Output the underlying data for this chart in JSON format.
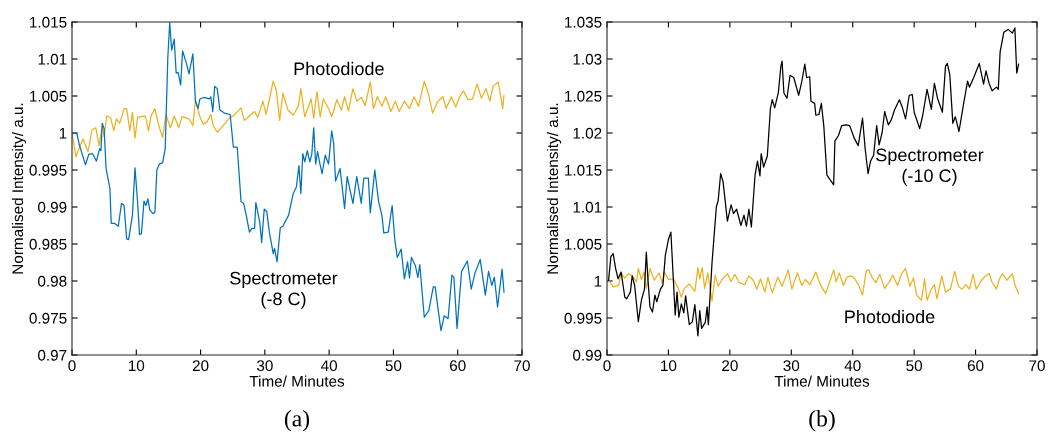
{
  "chart_data": [
    {
      "type": "line",
      "title": "(a)",
      "xlabel": "Time/ Minutes",
      "ylabel": "Normalised Intensity/ a.u.",
      "xlim": [
        0,
        70
      ],
      "xticks": [
        0,
        10,
        20,
        30,
        40,
        50,
        60,
        70
      ],
      "ylim": [
        0.97,
        1.015
      ],
      "yticks": [
        0.97,
        0.975,
        0.98,
        0.985,
        0.99,
        0.995,
        1,
        1.005,
        1.01,
        1.015
      ],
      "line_style": "solid",
      "annotations": [
        "Photodiode",
        "Spectrometer\n(-8 C)"
      ],
      "series": [
        {
          "color": "#edb120",
          "x": [
            0,
            0.6,
            1.7,
            2.5,
            3.1,
            3.7,
            4.2,
            4.7,
            5.0,
            5.4,
            6.0,
            6.5,
            6.9,
            7.4,
            8.1,
            8.5,
            9.0,
            9.4,
            9.8,
            10.2,
            10.8,
            11.4,
            11.9,
            12.3,
            12.9,
            13.5,
            14.1,
            14.6,
            15.3,
            15.9,
            16.6,
            17.1,
            18.2,
            18.8,
            19.2,
            19.9,
            20.4,
            21.0,
            21.6,
            22.0,
            22.6,
            23.7,
            24.5,
            25.2,
            26.3,
            26.8,
            27.6,
            28.4,
            28.9,
            29.7,
            30.2,
            31.3,
            31.8,
            32.3,
            32.8,
            33.6,
            34.4,
            35.2,
            35.6,
            36.2,
            37.2,
            37.6,
            38.1,
            38.6,
            39.1,
            39.9,
            40.4,
            41.2,
            41.9,
            42.4,
            43.0,
            43.7,
            44.3,
            45.0,
            45.6,
            46.4,
            46.9,
            47.5,
            48.2,
            48.8,
            49.6,
            50.3,
            50.9,
            51.7,
            52.5,
            53.2,
            53.9,
            54.8,
            55.5,
            56.1,
            56.9,
            57.7,
            58.2,
            59.0,
            59.7,
            60.3,
            60.9,
            61.6,
            62.3,
            63.0,
            63.7,
            64.4,
            65.0,
            65.5,
            66.3,
            67.0,
            67.2
          ],
          "values": [
            1.0,
            0.9968,
            0.9992,
            0.9975,
            1.0004,
            1.0007,
            0.9983,
            1.0009,
            0.9995,
            1.0023,
            1.0021,
            1.0003,
            1.0019,
            1.0013,
            1.0033,
            1.0033,
            1.0003,
            1.0028,
            0.9993,
            1.0021,
            1.0022,
            1.0023,
            1.0003,
            1.0023,
            1.0033,
            1.001,
            0.9994,
            1.0025,
            1.0007,
            1.0023,
            1.0007,
            1.0022,
            1.0019,
            1.001,
            1.0045,
            1.0022,
            1.0012,
            1.0015,
            1.0025,
            1.0009,
            1.0001,
            1.0012,
            1.002,
            1.0024,
            1.0034,
            1.0017,
            1.0023,
            1.0029,
            1.0021,
            1.0043,
            1.0025,
            1.007,
            1.0057,
            1.0017,
            1.0054,
            1.0031,
            1.0024,
            1.0036,
            1.006,
            1.0022,
            1.0046,
            1.002,
            1.0056,
            1.0022,
            1.0046,
            1.0033,
            1.0022,
            1.0045,
            1.0031,
            1.0049,
            1.003,
            1.006,
            1.0043,
            1.0048,
            1.0037,
            1.0069,
            1.0033,
            1.0049,
            1.0036,
            1.0049,
            1.0029,
            1.0043,
            1.0029,
            1.0043,
            1.0033,
            1.0049,
            1.0036,
            1.007,
            1.0051,
            1.0027,
            1.0043,
            1.0049,
            1.0033,
            1.0049,
            1.0035,
            1.0049,
            1.0057,
            1.0045,
            1.0046,
            1.0066,
            1.0047,
            1.006,
            1.0043,
            1.0063,
            1.0069,
            1.0033,
            1.0051
          ]
        },
        {
          "color": "#0072bd",
          "x": [
            0,
            0.73,
            1.15,
            2.1,
            2.6,
            3.2,
            3.8,
            4.3,
            4.5,
            4.7,
            5.0,
            5.3,
            5.9,
            6.1,
            6.6,
            7.2,
            7.7,
            8.1,
            8.5,
            8.8,
            9.4,
            9.8,
            10.2,
            10.5,
            10.8,
            11.2,
            11.5,
            11.8,
            12.1,
            12.6,
            12.9,
            13.2,
            13.6,
            14.1,
            14.5,
            14.9,
            15.2,
            15.5,
            15.9,
            16.2,
            16.5,
            16.9,
            17.2,
            17.8,
            18.2,
            18.8,
            19.2,
            19.6,
            19.9,
            20.5,
            21.4,
            21.6,
            21.9,
            22.2,
            22.6,
            23.0,
            23.7,
            24.6,
            25.1,
            25.7,
            26.3,
            26.7,
            27.1,
            27.6,
            28.0,
            28.4,
            28.6,
            29.2,
            29.5,
            29.9,
            30.3,
            30.7,
            31.3,
            31.5,
            31.9,
            32.4,
            32.8,
            33.7,
            34.4,
            34.9,
            35.3,
            35.6,
            35.9,
            36.2,
            36.6,
            37.0,
            37.3,
            37.6,
            37.9,
            38.2,
            38.6,
            38.9,
            39.4,
            39.9,
            40.4,
            40.7,
            41.0,
            41.7,
            42.4,
            42.8,
            43.7,
            44.3,
            45.0,
            45.4,
            46.1,
            46.4,
            47.1,
            47.7,
            48.2,
            48.5,
            49.2,
            49.8,
            50.2,
            50.6,
            51.2,
            51.7,
            52.2,
            52.5,
            52.8,
            53.4,
            53.8,
            54.1,
            54.8,
            55.5,
            56.2,
            56.5,
            56.9,
            57.4,
            57.9,
            58.5,
            59.1,
            59.4,
            59.9,
            60.6,
            61.5,
            62.1,
            62.7,
            63.5,
            64.3,
            64.8,
            65.3,
            65.7,
            66.2,
            66.9,
            67.2
          ],
          "values": [
            1.0,
            1.0,
            0.9984,
            0.9957,
            0.9971,
            0.9972,
            0.9962,
            0.9979,
            0.9976,
            1.0013,
            1.0006,
            0.9952,
            0.9925,
            0.9878,
            0.9878,
            0.9874,
            0.9905,
            0.9902,
            0.9857,
            0.9856,
            0.9889,
            0.9953,
            0.9907,
            0.9863,
            0.9864,
            0.9908,
            0.9902,
            0.9911,
            0.9896,
            0.9891,
            0.9893,
            0.995,
            0.9958,
            0.996,
            0.9979,
            1.0101,
            1.0149,
            1.0112,
            1.0127,
            1.0081,
            1.0082,
            1.0065,
            1.0111,
            1.0094,
            1.008,
            1.0107,
            1.0043,
            1.0033,
            1.0046,
            1.0048,
            1.0046,
            1.0049,
            1.0029,
            1.0063,
            1.006,
            1.0031,
            1.0027,
            1.0025,
            0.9981,
            0.9981,
            0.9907,
            0.9905,
            0.9889,
            0.9866,
            0.9871,
            0.9871,
            0.9906,
            0.988,
            0.9852,
            0.9897,
            0.9894,
            0.9866,
            0.9837,
            0.9844,
            0.9826,
            0.9872,
            0.9874,
            0.9889,
            0.9918,
            0.9927,
            0.9956,
            0.9918,
            0.9972,
            0.9961,
            0.9976,
            0.9961,
            0.9971,
            1.0007,
            0.9958,
            0.9975,
            0.9957,
            0.9945,
            0.997,
            0.9958,
            1.0003,
            0.9986,
            0.9935,
            0.9952,
            0.9898,
            0.9941,
            0.9905,
            0.9941,
            0.9905,
            0.9939,
            0.9939,
            0.9892,
            0.995,
            0.9907,
            0.9889,
            0.9865,
            0.9866,
            0.9902,
            0.9857,
            0.9832,
            0.9843,
            0.9803,
            0.9826,
            0.9804,
            0.9832,
            0.9821,
            0.9805,
            0.9822,
            0.9751,
            0.976,
            0.9792,
            0.9792,
            0.9765,
            0.9733,
            0.9753,
            0.9749,
            0.9808,
            0.9805,
            0.9736,
            0.9813,
            0.9827,
            0.9789,
            0.9811,
            0.9829,
            0.9781,
            0.9813,
            0.9794,
            0.9805,
            0.9765,
            0.9816,
            0.9785
          ]
        }
      ]
    },
    {
      "type": "line",
      "title": "(b)",
      "xlabel": "Time/ Minutes",
      "ylabel": "Normalised Intensity/ a.u.",
      "xlim": [
        0,
        70
      ],
      "xticks": [
        0,
        10,
        20,
        30,
        40,
        50,
        60,
        70
      ],
      "ylim": [
        0.99,
        1.035
      ],
      "yticks": [
        0.99,
        0.995,
        1,
        1.005,
        1.01,
        1.015,
        1.02,
        1.025,
        1.03,
        1.035
      ],
      "line_style": "solid",
      "annotations": [
        "Spectrometer\n(-10 C)",
        "Photodiode"
      ],
      "series": [
        {
          "color": "#edb120",
          "x": [
            0.26,
            1.0,
            1.9,
            2.3,
            2.9,
            3.5,
            4.1,
            4.8,
            5.1,
            5.6,
            6.0,
            6.4,
            7.0,
            7.7,
            8.5,
            9.0,
            9.3,
            10.0,
            10.8,
            11.6,
            12.1,
            12.6,
            13.4,
            14.3,
            14.8,
            15.1,
            15.5,
            15.9,
            16.4,
            17.1,
            17.6,
            18.1,
            18.7,
            19.6,
            20.2,
            20.8,
            21.5,
            22.4,
            23.1,
            23.8,
            24.4,
            25.0,
            25.7,
            26.2,
            26.9,
            27.8,
            28.5,
            29.5,
            30.1,
            31.0,
            31.7,
            32.3,
            33.0,
            34.0,
            34.8,
            35.6,
            36.9,
            37.3,
            37.8,
            38.5,
            39.0,
            39.8,
            40.3,
            41.0,
            41.6,
            42.2,
            42.6,
            43.2,
            43.8,
            44.4,
            45.2,
            46.0,
            46.5,
            47.3,
            47.9,
            48.6,
            49.3,
            49.9,
            50.4,
            51.2,
            51.7,
            52.1,
            52.8,
            53.3,
            53.7,
            54.5,
            55.1,
            55.9,
            56.6,
            57.2,
            57.8,
            58.4,
            59.0,
            59.6,
            60.1,
            60.8,
            61.4,
            62.2,
            62.7,
            63.4,
            63.9,
            64.4,
            65.1,
            66.0,
            66.4,
            67.0
          ],
          "values": [
            1.0001,
            0.9992,
            0.9994,
            1.0011,
            1.0004,
            1.001,
            1.0007,
            0.9999,
            1.0017,
            1.0002,
            1.0012,
            0.999,
            1.0017,
            1.0001,
            1.0011,
            0.9997,
            1.0013,
            1.0002,
            1.0003,
            0.999,
            0.9978,
            0.999,
            0.9996,
            0.9986,
            1.0018,
            1.0003,
            1.0018,
            0.999,
            1.0011,
            0.9973,
            1.0008,
            0.9993,
            1.0002,
            1.001,
            0.9999,
            1.0009,
            0.9998,
            0.9995,
            1.0007,
            1.0001,
            0.9989,
            1.0003,
            0.9985,
            1.0005,
            0.9984,
            1.0005,
            0.9993,
            1.0015,
            0.9989,
            1.0011,
            0.9994,
            1.0002,
            0.9995,
            1.0012,
            0.9994,
            0.9983,
            1.0015,
            0.9999,
            1.0011,
            0.9994,
            1.0005,
            1.0007,
            1.0003,
            0.9994,
            0.9981,
            1.0014,
            1.0015,
            1.0004,
            0.9998,
            1.0009,
            0.999,
            0.9999,
            1.0008,
            0.9994,
            1.0009,
            1.0017,
            0.9993,
            1.0004,
            0.9981,
            0.9974,
            1.0003,
            0.9974,
            0.9989,
            0.9995,
            0.9976,
            1.0007,
            0.9985,
            0.9989,
            1.0013,
            0.9993,
            0.9989,
            0.9995,
            0.9989,
            1.0009,
            0.9989,
            0.9999,
            1.0005,
            1.001,
            0.9998,
            0.9989,
            1.0003,
            1.001,
            1.0001,
            1.001,
            0.9995,
            0.9983
          ]
        },
        {
          "color": "#000000",
          "x": [
            0.26,
            0.63,
            1.0,
            1.4,
            1.8,
            2.3,
            2.9,
            3.2,
            3.8,
            4.1,
            4.5,
            5.1,
            5.6,
            6.1,
            6.4,
            6.7,
            7.0,
            7.4,
            7.8,
            8.1,
            8.7,
            9.1,
            9.5,
            10.0,
            10.4,
            11.1,
            11.4,
            11.7,
            12.1,
            12.5,
            12.8,
            13.4,
            13.9,
            14.3,
            14.8,
            15.1,
            15.4,
            16.0,
            16.3,
            16.5,
            17.1,
            17.8,
            18.1,
            18.5,
            18.9,
            19.6,
            20.2,
            20.6,
            21.1,
            21.8,
            22.3,
            22.7,
            23.1,
            23.5,
            24.1,
            24.5,
            24.9,
            25.1,
            25.5,
            26.1,
            26.6,
            26.9,
            27.3,
            27.9,
            28.3,
            28.5,
            28.8,
            29.3,
            29.8,
            30.4,
            31.2,
            31.7,
            32.2,
            32.5,
            33.0,
            33.2,
            33.8,
            34.0,
            34.5,
            34.9,
            35.3,
            35.8,
            36.9,
            37.1,
            37.7,
            38.2,
            38.9,
            39.5,
            40.3,
            40.9,
            41.6,
            42.0,
            42.5,
            42.9,
            43.4,
            43.9,
            44.3,
            44.8,
            45.2,
            45.8,
            46.3,
            46.8,
            47.6,
            48.1,
            48.6,
            49.2,
            49.7,
            50.0,
            50.9,
            51.4,
            52.1,
            52.8,
            53.3,
            53.8,
            54.6,
            55.1,
            55.4,
            55.8,
            56.3,
            56.7,
            57.3,
            58.0,
            58.7,
            59.0,
            59.7,
            60.6,
            61.3,
            61.7,
            62.2,
            62.7,
            63.4,
            63.7,
            64.0,
            64.6,
            65.3,
            66.0,
            66.4,
            66.7,
            67.0
          ],
          "values": [
            1.0001,
            1.0033,
            1.0037,
            1.0017,
            1.0003,
            1.0012,
            0.9978,
            0.9976,
            0.9985,
            1.0007,
            0.9994,
            0.9945,
            0.9974,
            0.9989,
            1.0039,
            0.9998,
            0.9965,
            0.9958,
            0.9981,
            0.9972,
            0.9989,
            0.9994,
            1.0035,
            1.0056,
            1.0066,
            0.9954,
            0.9985,
            0.9951,
            0.9969,
            0.9957,
            0.998,
            0.9941,
            0.9945,
            0.9968,
            0.9926,
            0.996,
            0.9936,
            0.9944,
            0.9965,
            0.9941,
            1.0025,
            1.01,
            1.0109,
            1.0145,
            1.0134,
            1.0081,
            1.0103,
            1.0091,
            1.0097,
            1.0075,
            1.0089,
            1.0074,
            1.0097,
            1.0073,
            1.0143,
            1.0162,
            1.0142,
            1.0172,
            1.0154,
            1.0169,
            1.0233,
            1.0245,
            1.0234,
            1.0255,
            1.029,
            1.0297,
            1.0254,
            1.0247,
            1.0278,
            1.0275,
            1.0251,
            1.0269,
            1.0293,
            1.0275,
            1.0276,
            1.0243,
            1.024,
            1.0224,
            1.0225,
            1.024,
            1.0209,
            1.0143,
            1.013,
            1.0189,
            1.0197,
            1.021,
            1.0211,
            1.021,
            1.0192,
            1.0183,
            1.022,
            1.0181,
            1.0145,
            1.0162,
            1.017,
            1.021,
            1.0184,
            1.0201,
            1.0229,
            1.0211,
            1.0218,
            1.0231,
            1.0245,
            1.0234,
            1.0219,
            1.0251,
            1.0252,
            1.0228,
            1.0206,
            1.0224,
            1.0259,
            1.0232,
            1.0267,
            1.0247,
            1.0228,
            1.029,
            1.0294,
            1.0279,
            1.0213,
            1.0222,
            1.0202,
            1.0237,
            1.027,
            1.0262,
            1.0275,
            1.0294,
            1.0266,
            1.0284,
            1.0267,
            1.0257,
            1.0262,
            1.0259,
            1.031,
            1.0336,
            1.034,
            1.0335,
            1.0342,
            1.0281,
            1.0293
          ]
        }
      ]
    }
  ]
}
